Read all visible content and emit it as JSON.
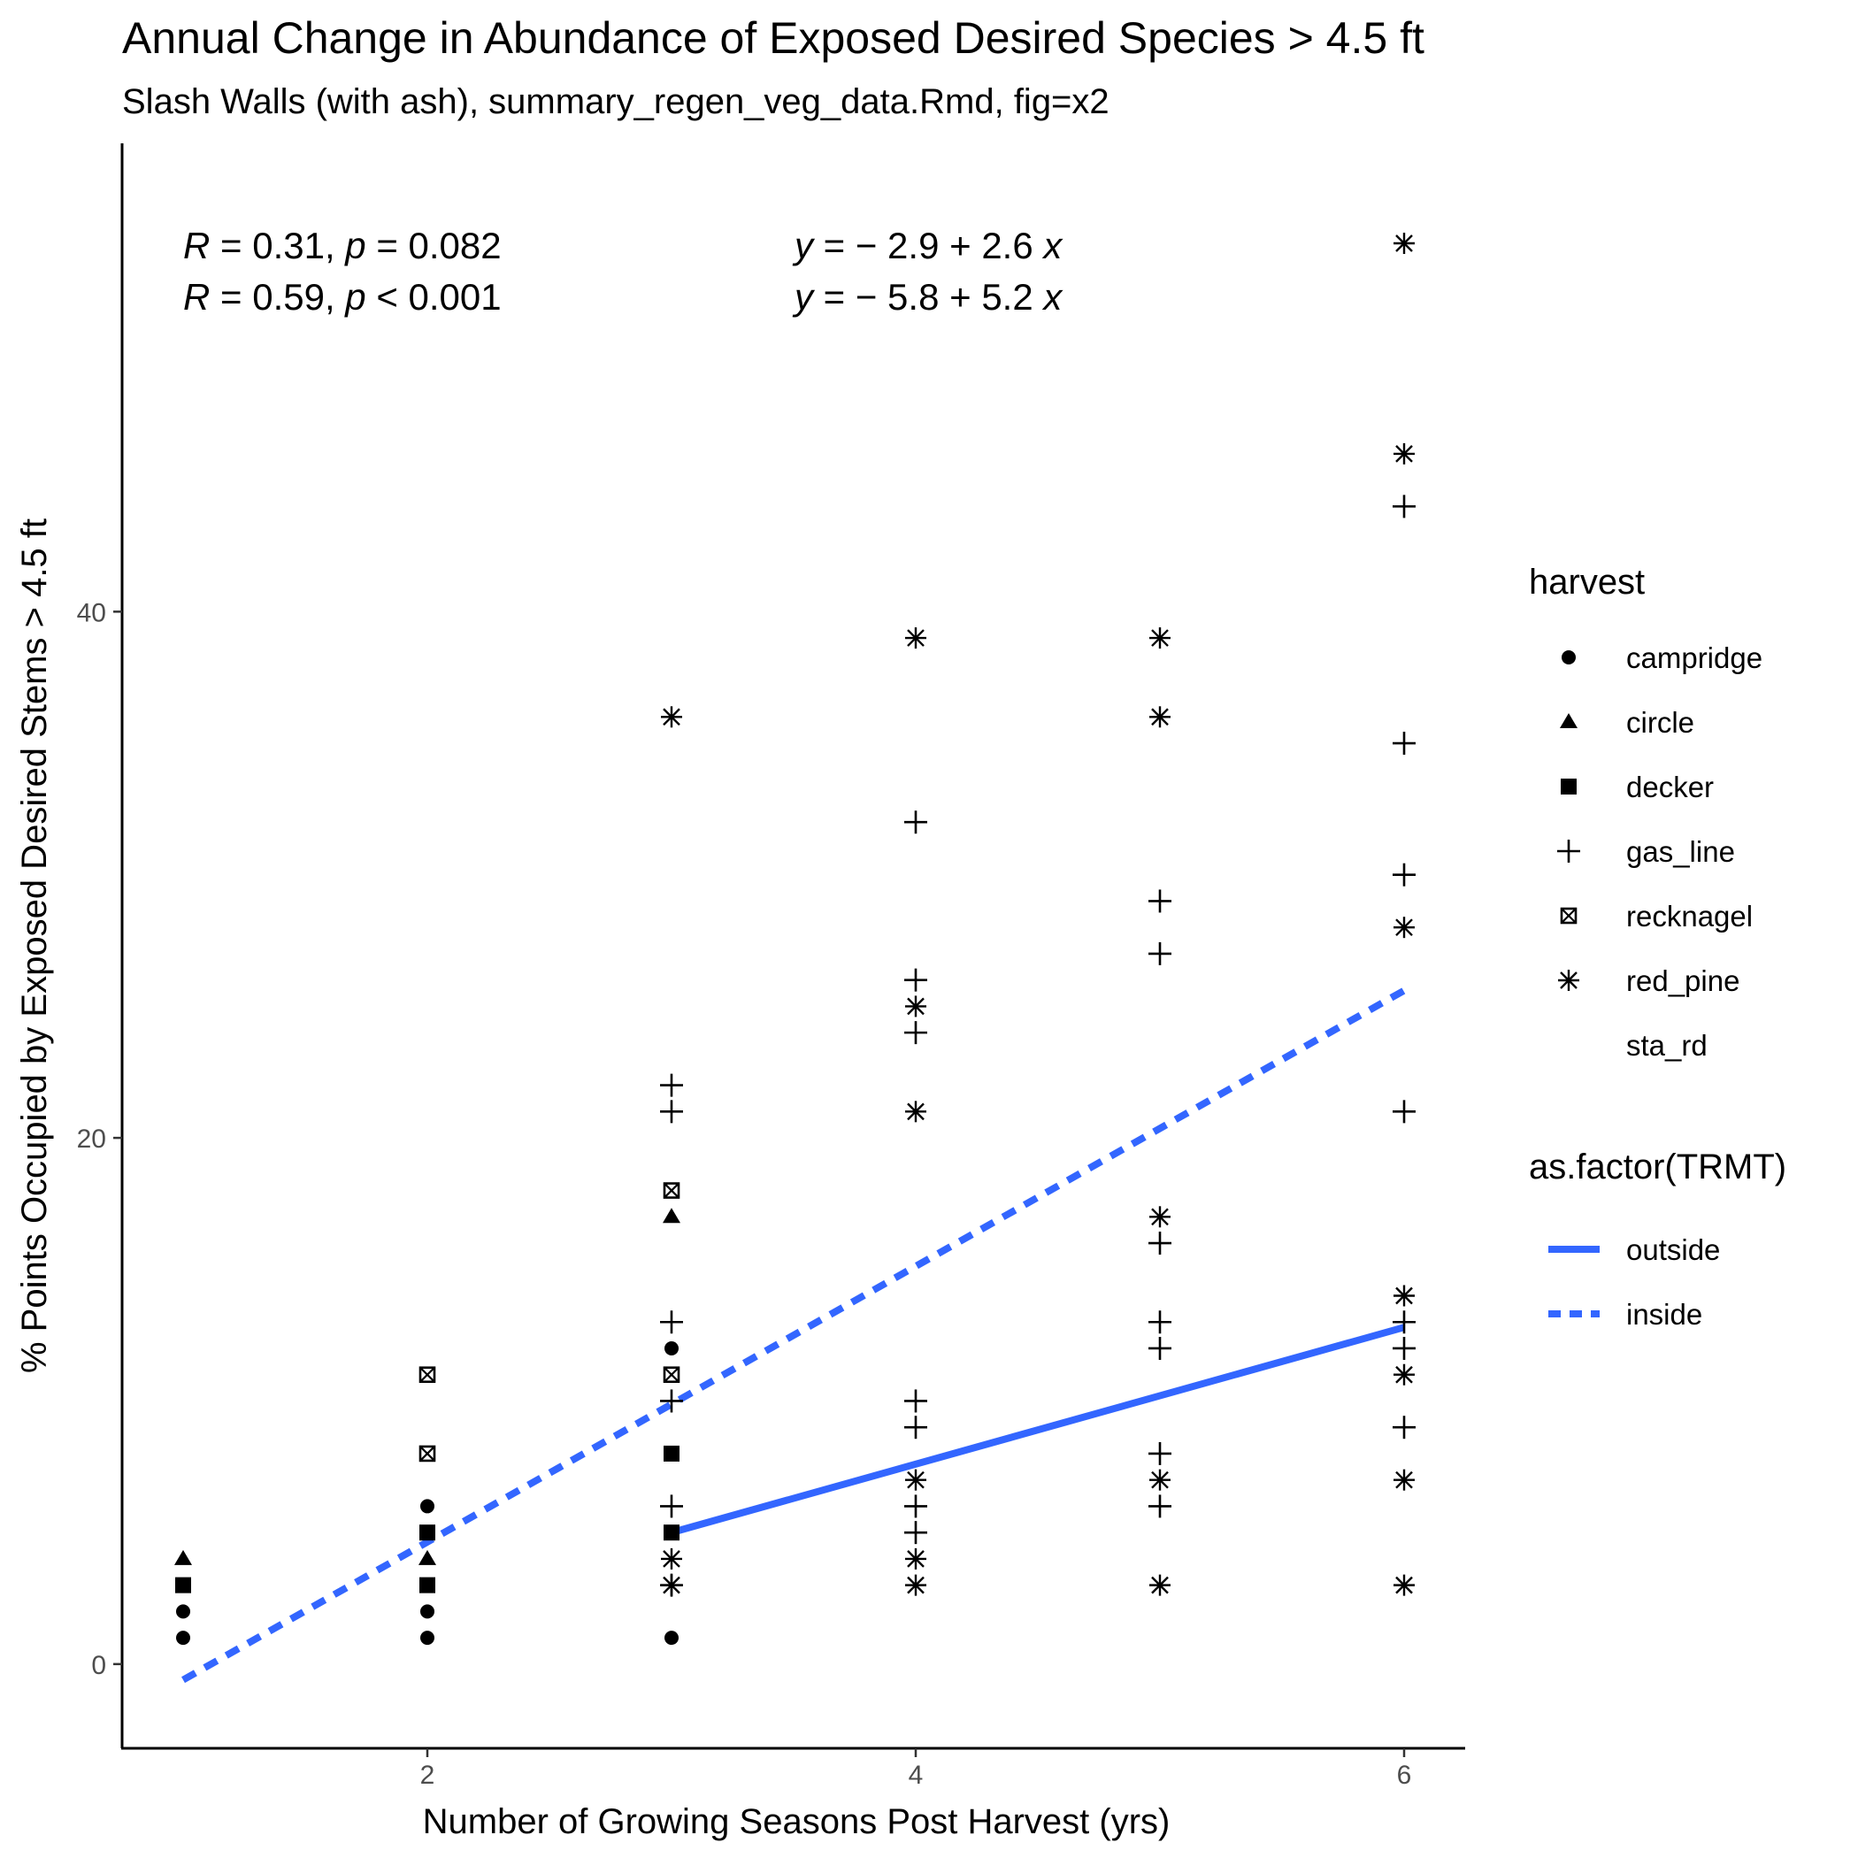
{
  "chart_data": {
    "type": "scatter",
    "title": "Annual Change in Abundance of Exposed Desired Species > 4.5 ft",
    "subtitle": "Slash Walls (with ash), summary_regen_veg_data.Rmd, fig=x2",
    "xlabel": "Number of Growing Seasons Post Harvest (yrs)",
    "ylabel": "% Points Occupied by Exposed Desired Stems > 4.5 ft",
    "xlim": [
      0.75,
      6.25
    ],
    "ylim": [
      -3.2,
      57.8
    ],
    "x_ticks": [
      2,
      4,
      6
    ],
    "y_ticks": [
      0,
      20,
      40
    ],
    "grid": false,
    "legend_position": "right",
    "line_color": "#3366FF",
    "annotations": {
      "stat_lines": [
        {
          "r_label": "R",
          "r_value": " = 0.31, ",
          "p_label": "p",
          "p_value": " = 0.082"
        },
        {
          "r_label": "R",
          "r_value": " = 0.59, ",
          "p_label": "p",
          "p_value": " < 0.001"
        }
      ],
      "eq_lines": [
        {
          "y_label": "y",
          "body": " = − 2.9 + 2.6 ",
          "x_label": "x"
        },
        {
          "y_label": "y",
          "body": " = − 5.8 + 5.2 ",
          "x_label": "x"
        }
      ]
    },
    "legend_harvest": {
      "title": "harvest",
      "items": [
        {
          "label": "campridge",
          "shape": "circle"
        },
        {
          "label": "circle",
          "shape": "triangle"
        },
        {
          "label": "decker",
          "shape": "square"
        },
        {
          "label": "gas_line",
          "shape": "plus"
        },
        {
          "label": "recknagel",
          "shape": "boxx"
        },
        {
          "label": "red_pine",
          "shape": "star"
        },
        {
          "label": "sta_rd",
          "shape": "none"
        }
      ]
    },
    "legend_trmt": {
      "title": "as.factor(TRMT)",
      "items": [
        {
          "label": "outside",
          "linetype": "solid"
        },
        {
          "label": "inside",
          "linetype": "dashed"
        }
      ]
    },
    "lines": [
      {
        "name": "outside",
        "linetype": "solid",
        "x": [
          3,
          6
        ],
        "y": [
          5.0,
          12.8
        ]
      },
      {
        "name": "inside",
        "linetype": "dashed",
        "x": [
          1,
          6
        ],
        "y": [
          -0.6,
          25.6
        ]
      }
    ],
    "series": [
      {
        "name": "campridge",
        "shape": "circle",
        "points": [
          [
            1,
            1
          ],
          [
            1,
            2
          ],
          [
            2,
            1
          ],
          [
            2,
            2
          ],
          [
            2,
            6
          ],
          [
            3,
            1
          ],
          [
            3,
            12
          ]
        ]
      },
      {
        "name": "circle",
        "shape": "triangle",
        "points": [
          [
            1,
            4
          ],
          [
            2,
            4
          ],
          [
            3,
            17
          ]
        ]
      },
      {
        "name": "decker",
        "shape": "square",
        "points": [
          [
            1,
            3
          ],
          [
            2,
            3
          ],
          [
            2,
            5
          ],
          [
            3,
            5
          ],
          [
            3,
            8
          ]
        ]
      },
      {
        "name": "gas_line",
        "shape": "plus",
        "points": [
          [
            3,
            22
          ],
          [
            3,
            21
          ],
          [
            3,
            13
          ],
          [
            3,
            10
          ],
          [
            3,
            6
          ],
          [
            3,
            3
          ],
          [
            4,
            32
          ],
          [
            4,
            26
          ],
          [
            4,
            24
          ],
          [
            4,
            10
          ],
          [
            4,
            9
          ],
          [
            4,
            6
          ],
          [
            4,
            5
          ],
          [
            5,
            29
          ],
          [
            5,
            27
          ],
          [
            5,
            16
          ],
          [
            5,
            13
          ],
          [
            5,
            12
          ],
          [
            5,
            8
          ],
          [
            5,
            6
          ],
          [
            6,
            44
          ],
          [
            6,
            35
          ],
          [
            6,
            30
          ],
          [
            6,
            21
          ],
          [
            6,
            13
          ],
          [
            6,
            12
          ],
          [
            6,
            9
          ]
        ]
      },
      {
        "name": "recknagel",
        "shape": "boxx",
        "points": [
          [
            2,
            11
          ],
          [
            2,
            8
          ],
          [
            3,
            18
          ],
          [
            3,
            11
          ]
        ]
      },
      {
        "name": "red_pine",
        "shape": "star",
        "points": [
          [
            3,
            36
          ],
          [
            3,
            4
          ],
          [
            3,
            3
          ],
          [
            4,
            39
          ],
          [
            4,
            25
          ],
          [
            4,
            21
          ],
          [
            4,
            7
          ],
          [
            4,
            4
          ],
          [
            4,
            3
          ],
          [
            5,
            39
          ],
          [
            5,
            36
          ],
          [
            5,
            17
          ],
          [
            5,
            7
          ],
          [
            5,
            3
          ],
          [
            6,
            54
          ],
          [
            6,
            46
          ],
          [
            6,
            28
          ],
          [
            6,
            14
          ],
          [
            6,
            11
          ],
          [
            6,
            7
          ],
          [
            6,
            3
          ]
        ]
      }
    ]
  }
}
